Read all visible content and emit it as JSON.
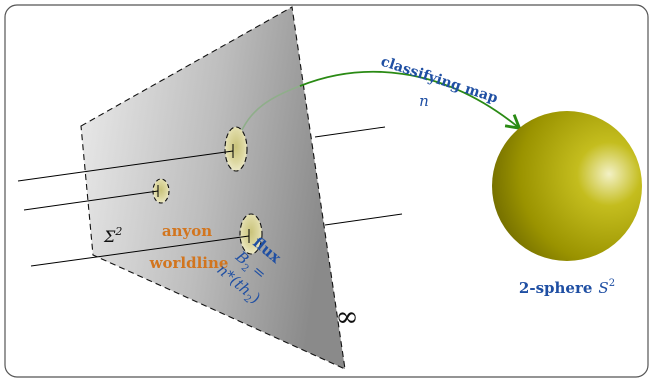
{
  "labels": {
    "classifying_map": "classifying map",
    "map_symbol": "n",
    "anyon": "anyon",
    "worldline": "worldline",
    "sigma": "Σ",
    "sigma_sup": "2",
    "flux": "flux",
    "b2": "B",
    "b2_sub": "2",
    "equals": "=",
    "pullback": "n*(th",
    "pullback_sub": "2",
    "pullback_end": ")",
    "infinity": "∞",
    "sphere_label": "2-sphere",
    "sphere_S": "S",
    "sphere_sup": "2"
  },
  "colors": {
    "label_blue": "#1f4fa3",
    "label_orange": "#d2751e",
    "arrow_green": "#2a8a14",
    "sphere": "#a9a400"
  }
}
